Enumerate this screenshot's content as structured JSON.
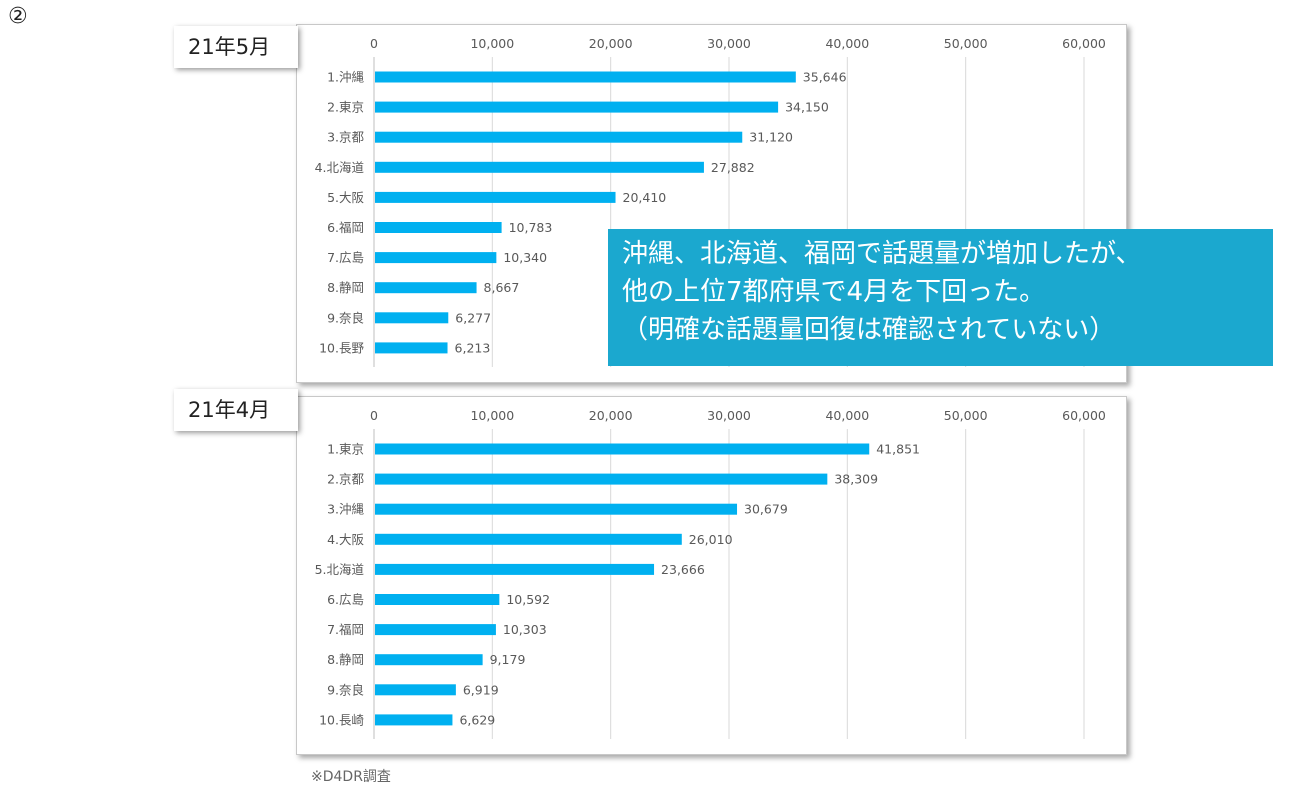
{
  "page_marker": "②",
  "callout": {
    "line1": "沖縄、北海道、福岡で話題量が増加したが、",
    "line2": "他の上位7都府県で4月を下回った。",
    "line3": "（明確な話題量回復は確認されていない）"
  },
  "footnote": "※D4DR調査",
  "colors": {
    "bar": "#00b0f0",
    "callout": "#1ba8cf",
    "grid": "#d9d9d9",
    "text": "#595959"
  },
  "chart_data": [
    {
      "type": "bar",
      "orientation": "horizontal",
      "period_label": "21年5月",
      "xlim": [
        0,
        60000
      ],
      "ticks": [
        "0",
        "10,000",
        "20,000",
        "30,000",
        "40,000",
        "50,000",
        "60,000"
      ],
      "tick_values": [
        0,
        10000,
        20000,
        30000,
        40000,
        50000,
        60000
      ],
      "categories": [
        "1.沖縄",
        "2.東京",
        "3.京都",
        "4.北海道",
        "5.大阪",
        "6.福岡",
        "7.広島",
        "8.静岡",
        "9.奈良",
        "10.長野"
      ],
      "values": [
        35646,
        34150,
        31120,
        27882,
        20410,
        10783,
        10340,
        8667,
        6277,
        6213
      ],
      "labels": [
        "35,646",
        "34,150",
        "31,120",
        "27,882",
        "20,410",
        "10,783",
        "10,340",
        "8,667",
        "6,277",
        "6,213"
      ],
      "grid": true
    },
    {
      "type": "bar",
      "orientation": "horizontal",
      "period_label": "21年4月",
      "xlim": [
        0,
        60000
      ],
      "ticks": [
        "0",
        "10,000",
        "20,000",
        "30,000",
        "40,000",
        "50,000",
        "60,000"
      ],
      "tick_values": [
        0,
        10000,
        20000,
        30000,
        40000,
        50000,
        60000
      ],
      "categories": [
        "1.東京",
        "2.京都",
        "3.沖縄",
        "4.大阪",
        "5.北海道",
        "6.広島",
        "7.福岡",
        "8.静岡",
        "9.奈良",
        "10.長崎"
      ],
      "values": [
        41851,
        38309,
        30679,
        26010,
        23666,
        10592,
        10303,
        9179,
        6919,
        6629
      ],
      "labels": [
        "41,851",
        "38,309",
        "30,679",
        "26,010",
        "23,666",
        "10,592",
        "10,303",
        "9,179",
        "6,919",
        "6,629"
      ],
      "grid": true
    }
  ]
}
